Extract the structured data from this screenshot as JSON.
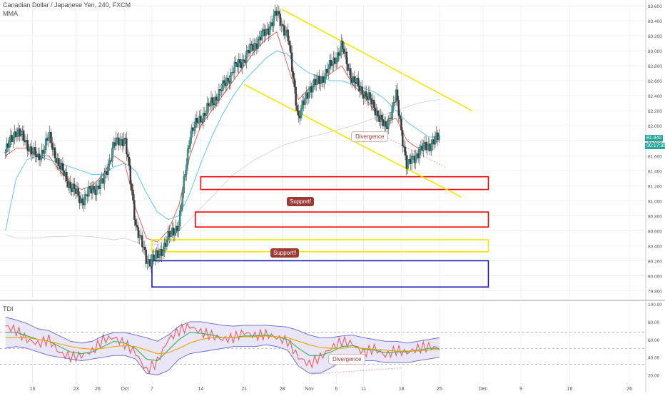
{
  "header": {
    "symbol": "Canadian Dollar / Japanese Yen, 240, FXCM",
    "study": "MMA"
  },
  "panes": {
    "oscillator_label": "TDI"
  },
  "annotations": {
    "divergence_price": "Divergence",
    "support_1": "Support!",
    "support_2": "Support!!",
    "divergence_osc": "Divergence"
  },
  "price_tags": {
    "last": "81.842",
    "countdown": "00:17:35"
  },
  "colors": {
    "bull": "#26a69a",
    "bear": "#ef5350",
    "candle": "#3c3c3c",
    "ma_fast": "#e0645e",
    "ma_mid": "#62c8e4",
    "ma_slow": "#d8d8d8",
    "channel": "#f5e600",
    "zone_red": "#ff0000",
    "zone_yellow": "#f5e600",
    "zone_blue": "#1919b4",
    "label": "#9c3a36"
  },
  "chart_data": [
    {
      "type": "candlestick",
      "title": "Canadian Dollar / Japanese Yen, 240, FXCM",
      "ylim": [
        79.7,
        83.6
      ],
      "y_ticks": [
        79.8,
        80.0,
        80.2,
        80.4,
        80.6,
        80.8,
        81.0,
        81.2,
        81.4,
        81.6,
        81.8,
        82.0,
        82.2,
        82.4,
        82.6,
        82.8,
        83.0,
        83.2,
        83.4,
        83.6
      ],
      "y_tick_labels": [
        "79.800",
        "80.000",
        "80.200",
        "80.400",
        "80.600",
        "80.800",
        "81.000",
        "81.200",
        "81.400",
        "81.600",
        "81.800",
        "82.000",
        "82.200",
        "82.400",
        "82.600",
        "82.800",
        "83.000",
        "83.200",
        "83.400",
        "83.600"
      ],
      "x_tick_labels": [
        "16",
        "23",
        "26",
        "Oct",
        "7",
        "14",
        "21",
        "28",
        "Nov",
        "6",
        "11",
        "18",
        "25",
        "Dec",
        "9",
        "16",
        "26"
      ],
      "x_tick_positions": [
        2.5,
        6.5,
        8.5,
        11,
        13.5,
        18,
        22,
        25.5,
        28,
        30.5,
        33,
        36.5,
        40,
        44,
        47.5,
        52,
        57.5
      ],
      "x_range": [
        -0.5,
        59
      ],
      "close_path_days": [
        0,
        1,
        2,
        3,
        4,
        5,
        6,
        7,
        8,
        9,
        10,
        11,
        12,
        13,
        14,
        15,
        16,
        17,
        18,
        19,
        20,
        21,
        22,
        23,
        24,
        25,
        26,
        27,
        28,
        29,
        30,
        31,
        32,
        33,
        34,
        35,
        36,
        37,
        38,
        39,
        40
      ],
      "close_path_values": [
        81.65,
        81.95,
        81.75,
        81.55,
        81.85,
        81.45,
        81.2,
        81.0,
        81.15,
        81.25,
        81.75,
        81.85,
        80.7,
        80.2,
        80.25,
        80.5,
        80.7,
        81.9,
        82.1,
        82.3,
        82.5,
        82.75,
        82.9,
        83.1,
        83.25,
        83.5,
        83.2,
        82.1,
        82.5,
        82.6,
        82.8,
        83.05,
        82.6,
        82.45,
        82.25,
        81.95,
        82.4,
        81.45,
        81.65,
        81.75,
        81.85
      ],
      "ma_fast": [
        81.6,
        81.7,
        81.7,
        81.6,
        81.6,
        81.4,
        81.25,
        81.15,
        81.2,
        81.35,
        81.6,
        81.5,
        80.9,
        80.5,
        80.45,
        80.6,
        80.95,
        81.6,
        82.0,
        82.2,
        82.4,
        82.6,
        82.8,
        83.0,
        83.15,
        83.25,
        82.8,
        82.35,
        82.5,
        82.6,
        82.7,
        82.8,
        82.55,
        82.4,
        82.2,
        82.05,
        82.1,
        81.8,
        81.7,
        81.75,
        81.8
      ],
      "ma_mid": [
        80.6,
        81.3,
        81.55,
        81.6,
        81.55,
        81.5,
        81.45,
        81.4,
        81.35,
        81.35,
        81.45,
        81.5,
        81.4,
        81.1,
        80.85,
        80.75,
        80.8,
        81.1,
        81.5,
        81.85,
        82.15,
        82.4,
        82.6,
        82.75,
        82.9,
        83.0,
        82.95,
        82.8,
        82.7,
        82.65,
        82.6,
        82.6,
        82.55,
        82.5,
        82.45,
        82.35,
        82.2,
        82.05,
        81.95,
        81.85,
        81.85
      ],
      "ma_slow": [
        80.55,
        80.5,
        80.5,
        80.5,
        80.52,
        80.52,
        80.53,
        80.53,
        80.52,
        80.5,
        80.48,
        80.5,
        80.45,
        80.4,
        80.42,
        80.5,
        80.6,
        80.75,
        80.9,
        81.05,
        81.2,
        81.35,
        81.45,
        81.55,
        81.62,
        81.7,
        81.76,
        81.8,
        81.85,
        81.88,
        81.92,
        81.96,
        82.0,
        82.05,
        82.1,
        82.15,
        82.2,
        82.25,
        82.3,
        82.33,
        82.35
      ],
      "channel_upper": [
        [
          25.5,
          83.55
        ],
        [
          43,
          82.2
        ]
      ],
      "channel_lower": [
        [
          22,
          82.55
        ],
        [
          42,
          81.05
        ]
      ],
      "zones": [
        {
          "color": "red",
          "x": [
            18,
            44.5
          ],
          "y": [
            81.15,
            81.32
          ]
        },
        {
          "color": "red",
          "x": [
            17.5,
            44.5
          ],
          "y": [
            80.65,
            80.85
          ]
        },
        {
          "color": "yellow",
          "x": [
            13.5,
            44.5
          ],
          "y": [
            80.32,
            80.48
          ]
        },
        {
          "color": "blue",
          "x": [
            13.5,
            44.5
          ],
          "y": [
            79.85,
            80.2
          ]
        }
      ]
    },
    {
      "type": "line",
      "title": "TDI",
      "ylim": [
        10,
        100
      ],
      "y_ticks": [
        20,
        40,
        60,
        80,
        100
      ],
      "y_tick_labels": [
        "20.00",
        "40.00",
        "60.00",
        "80.00",
        "100.00"
      ],
      "dashed_levels": [
        32,
        50,
        68
      ],
      "days": [
        0,
        1,
        2,
        3,
        4,
        5,
        6,
        7,
        8,
        9,
        10,
        11,
        12,
        13,
        14,
        15,
        16,
        17,
        18,
        19,
        20,
        21,
        22,
        23,
        24,
        25,
        26,
        27,
        28,
        29,
        30,
        31,
        32,
        33,
        34,
        35,
        36,
        37,
        38,
        39,
        40
      ],
      "series": [
        {
          "values": [
            75,
            70,
            60,
            55,
            60,
            45,
            40,
            42,
            47,
            60,
            62,
            55,
            45,
            25,
            35,
            60,
            70,
            75,
            68,
            65,
            60,
            62,
            68,
            64,
            66,
            62,
            58,
            40,
            32,
            40,
            50,
            58,
            55,
            45,
            50,
            42,
            48,
            45,
            50,
            52,
            50
          ]
        },
        {
          "values": [
            68,
            68,
            64,
            60,
            58,
            52,
            46,
            44,
            46,
            52,
            58,
            56,
            50,
            38,
            36,
            48,
            60,
            68,
            67,
            65,
            62,
            62,
            64,
            64,
            65,
            63,
            60,
            50,
            42,
            42,
            46,
            52,
            53,
            49,
            48,
            45,
            46,
            46,
            48,
            50,
            50
          ]
        },
        {
          "values": [
            62,
            62,
            62,
            60,
            58,
            55,
            52,
            50,
            49,
            50,
            52,
            53,
            52,
            48,
            44,
            45,
            50,
            56,
            60,
            62,
            62,
            62,
            63,
            63,
            64,
            63,
            62,
            58,
            54,
            51,
            50,
            50,
            51,
            50,
            49,
            48,
            47,
            47,
            47,
            48,
            49
          ]
        },
        {
          "values": [
            85,
            82,
            78,
            72,
            70,
            64,
            58,
            56,
            58,
            64,
            68,
            68,
            65,
            62,
            58,
            65,
            75,
            80,
            80,
            78,
            76,
            75,
            76,
            76,
            76,
            75,
            74,
            70,
            65,
            62,
            62,
            64,
            65,
            62,
            60,
            58,
            58,
            56,
            58,
            60,
            62
          ]
        },
        {
          "values": [
            50,
            52,
            50,
            46,
            42,
            40,
            38,
            36,
            38,
            40,
            42,
            42,
            38,
            22,
            20,
            25,
            38,
            44,
            46,
            48,
            50,
            52,
            52,
            52,
            54,
            52,
            48,
            30,
            22,
            22,
            28,
            36,
            38,
            36,
            36,
            34,
            34,
            34,
            36,
            38,
            40
          ]
        }
      ]
    }
  ]
}
